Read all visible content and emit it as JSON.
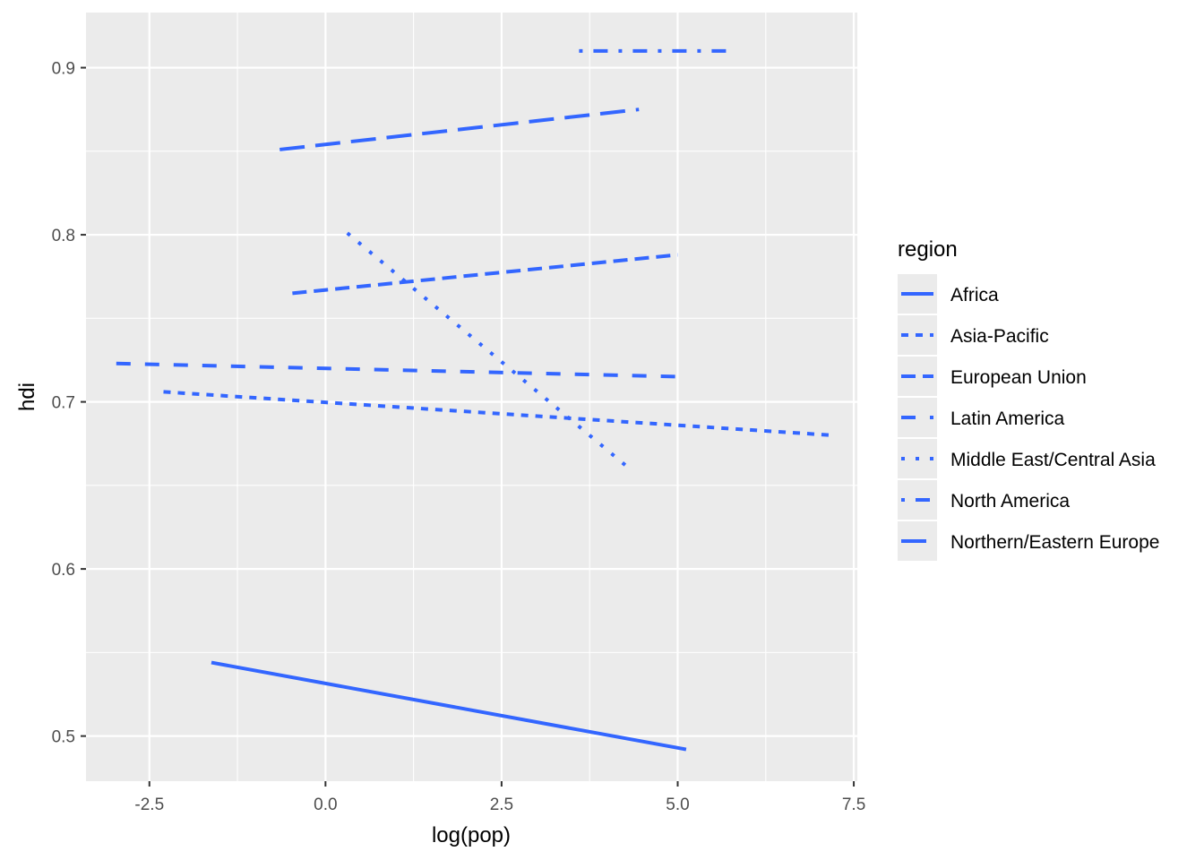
{
  "chart_data": {
    "type": "line",
    "xlabel": "log(pop)",
    "ylabel": "hdi",
    "xlim": [
      -3.4,
      7.55
    ],
    "ylim": [
      0.473,
      0.933
    ],
    "x_ticks": [
      -2.5,
      0.0,
      2.5,
      5.0,
      7.5
    ],
    "x_tick_labels": [
      "-2.5",
      "0.0",
      "2.5",
      "5.0",
      "7.5"
    ],
    "y_ticks": [
      0.5,
      0.6,
      0.7,
      0.8,
      0.9
    ],
    "y_tick_labels": [
      "0.5",
      "0.6",
      "0.7",
      "0.8",
      "0.9"
    ],
    "grid": true,
    "legend": {
      "title": "region",
      "placement": "right"
    },
    "line_color": "#3366FF",
    "panel_color": "#EBEBEB",
    "series": [
      {
        "name": "Africa",
        "linetype": "solid",
        "x": [
          -1.62,
          5.12
        ],
        "y": [
          0.544,
          0.492
        ]
      },
      {
        "name": "Asia-Pacific",
        "linetype": "22",
        "x": [
          -2.3,
          7.2
        ],
        "y": [
          0.706,
          0.68
        ]
      },
      {
        "name": "European Union",
        "linetype": "42",
        "x": [
          -0.47,
          5.0
        ],
        "y": [
          0.765,
          0.788
        ]
      },
      {
        "name": "Latin America",
        "linetype": "44",
        "x": [
          -2.97,
          5.1
        ],
        "y": [
          0.723,
          0.715
        ]
      },
      {
        "name": "Middle East/Central Asia",
        "linetype": "13",
        "x": [
          0.31,
          4.26
        ],
        "y": [
          0.801,
          0.662
        ]
      },
      {
        "name": "North America",
        "linetype": "1343",
        "x": [
          3.6,
          5.8
        ],
        "y": [
          0.91,
          0.91
        ]
      },
      {
        "name": "Northern/Eastern Europe",
        "linetype": "73",
        "x": [
          -0.65,
          4.45
        ],
        "y": [
          0.851,
          0.875
        ]
      }
    ]
  }
}
